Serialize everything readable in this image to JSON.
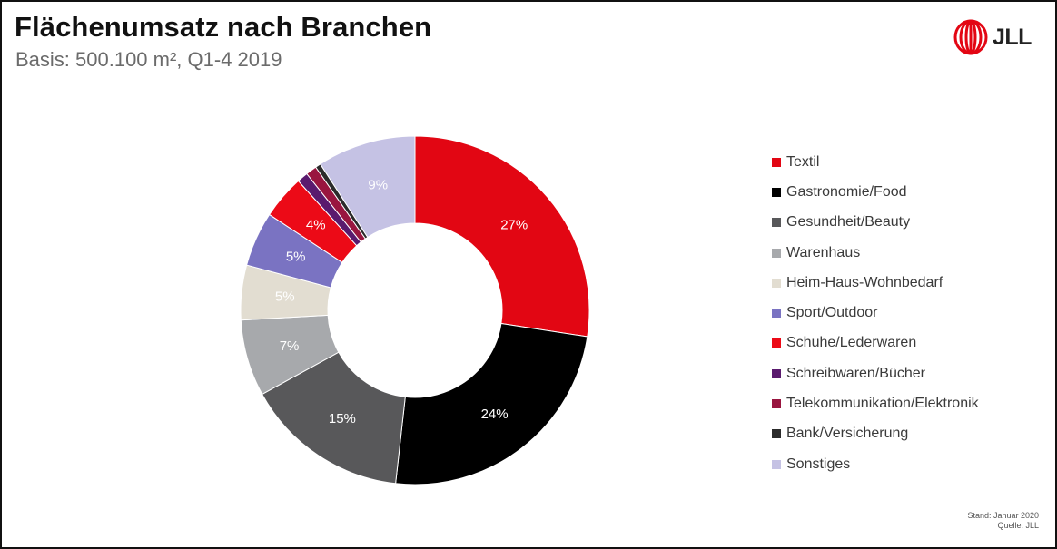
{
  "header": {
    "title": "Flächenumsatz nach Branchen",
    "subtitle": "Basis: 500.100 m², Q1-4 2019"
  },
  "logo": {
    "text": "JLL",
    "icon": "jll-logo-icon",
    "color": "#e30613"
  },
  "footnote": {
    "date_line": "Stand: Januar 2020",
    "source_line": "Quelle: JLL"
  },
  "chart_data": {
    "type": "pie",
    "donut": true,
    "legend_position": "right",
    "slices": [
      {
        "label": "Textil",
        "value": 27,
        "value_label": "27%",
        "color": "#e20613",
        "label_color": "#ffffff"
      },
      {
        "label": "Gastronomie/Food",
        "value": 24,
        "value_label": "24%",
        "color": "#000000",
        "label_color": "#ffffff"
      },
      {
        "label": "Gesundheit/Beauty",
        "value": 15,
        "value_label": "15%",
        "color": "#58585a",
        "label_color": "#ffffff"
      },
      {
        "label": "Warenhaus",
        "value": 7,
        "value_label": "7%",
        "color": "#a7a9ac",
        "label_color": "#ffffff"
      },
      {
        "label": "Heim-Haus-Wohnbedarf",
        "value": 5,
        "value_label": "5%",
        "color": "#e2ddd1",
        "label_color": "#ffffff"
      },
      {
        "label": "Sport/Outdoor",
        "value": 5,
        "value_label": "5%",
        "color": "#7a73c2",
        "label_color": "#ffffff"
      },
      {
        "label": "Schuhe/Lederwaren",
        "value": 4,
        "value_label": "4%",
        "color": "#ec0a17",
        "label_color": "#ffffff"
      },
      {
        "label": "Schreibwaren/Bücher",
        "value": 1,
        "value_label": "",
        "color": "#5a1a6e",
        "label_color": "#ffffff"
      },
      {
        "label": "Telekommunikation/Elektronik",
        "value": 1,
        "value_label": "",
        "color": "#99153f",
        "label_color": "#ffffff"
      },
      {
        "label": "Bank/Versicherung",
        "value": 0.5,
        "value_label": "",
        "color": "#2b2b2b",
        "label_color": "#ffffff"
      },
      {
        "label": "Sonstiges",
        "value": 9,
        "value_label": "9%",
        "color": "#c5c2e4",
        "label_color": "#ffffff"
      }
    ]
  }
}
